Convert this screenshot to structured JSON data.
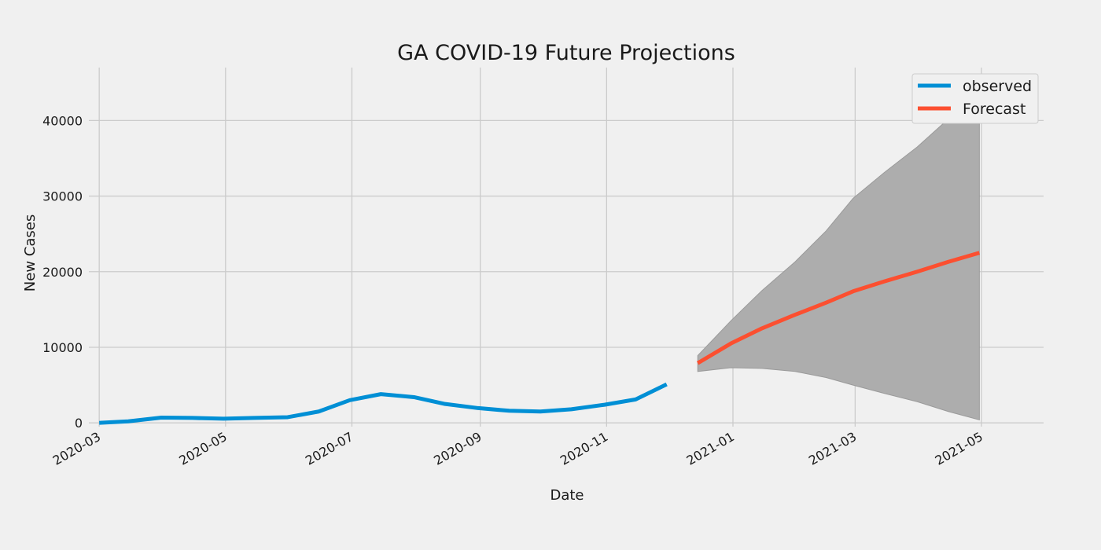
{
  "chart_data": {
    "type": "line",
    "title": "GA COVID-19 Future Projections",
    "xlabel": "Date",
    "ylabel": "New Cases",
    "xlim": [
      "2020-02-25",
      "2021-05-31"
    ],
    "ylim": [
      -500,
      47000
    ],
    "x_ticks": [
      "2020-03-01",
      "2020-05-01",
      "2020-07-01",
      "2020-09-01",
      "2020-11-01",
      "2021-01-01",
      "2021-03-01",
      "2021-05-01"
    ],
    "x_tick_labels": [
      "2020-03",
      "2020-05",
      "2020-07",
      "2020-09",
      "2020-11",
      "2021-01",
      "2021-03",
      "2021-05"
    ],
    "y_ticks": [
      0,
      10000,
      20000,
      30000,
      40000
    ],
    "y_tick_labels": [
      "0",
      "10000",
      "20000",
      "30000",
      "40000"
    ],
    "grid": true,
    "legend_position": "top-right",
    "colors": {
      "observed": "#008fd5",
      "forecast": "#fc4f30",
      "confidence_band": "#adadad",
      "background": "#f0f0f0",
      "grid": "#cbcbcb"
    },
    "series": [
      {
        "name": "observed",
        "x": [
          "2020-03-01",
          "2020-03-15",
          "2020-03-31",
          "2020-04-15",
          "2020-04-30",
          "2020-05-15",
          "2020-05-31",
          "2020-06-15",
          "2020-06-30",
          "2020-07-15",
          "2020-07-31",
          "2020-08-15",
          "2020-08-31",
          "2020-09-15",
          "2020-09-30",
          "2020-10-15",
          "2020-10-31",
          "2020-11-15",
          "2020-11-30"
        ],
        "y": [
          0,
          200,
          700,
          650,
          550,
          650,
          750,
          1500,
          3000,
          3800,
          3400,
          2500,
          1950,
          1600,
          1500,
          1800,
          2400,
          3100,
          5100
        ]
      },
      {
        "name": "Forecast",
        "x": [
          "2020-12-15",
          "2020-12-31",
          "2021-01-15",
          "2021-01-31",
          "2021-02-15",
          "2021-02-28",
          "2021-03-15",
          "2021-03-31",
          "2021-04-15",
          "2021-04-30"
        ],
        "y": [
          7900,
          10500,
          12500,
          14300,
          15900,
          17400,
          18700,
          20000,
          21300,
          22500
        ],
        "lower": [
          6800,
          7300,
          7200,
          6800,
          6000,
          5000,
          3900,
          2800,
          1500,
          400
        ],
        "upper": [
          8900,
          13500,
          17500,
          21300,
          25400,
          29700,
          33100,
          36500,
          40200,
          44000
        ]
      }
    ]
  }
}
